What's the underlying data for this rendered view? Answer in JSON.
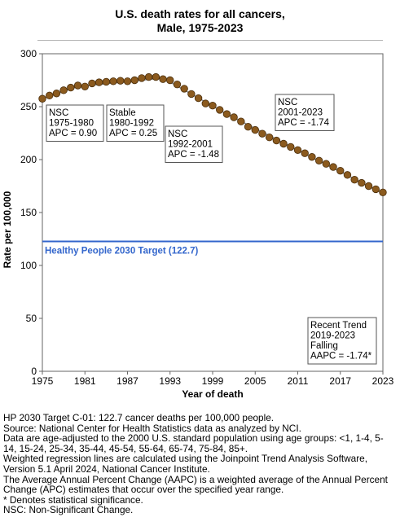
{
  "chart_data": {
    "type": "scatter",
    "title_lines": [
      "U.S. death rates for all cancers,",
      "Male,  1975-2023"
    ],
    "xlabel": "Year of death",
    "ylabel": "Rate per 100,000",
    "xlim": [
      1975,
      2023
    ],
    "ylim": [
      0,
      300
    ],
    "x_ticks": [
      1975,
      1981,
      1987,
      1993,
      1999,
      2005,
      2011,
      2017,
      2023
    ],
    "x_tick_labels": [
      "1975",
      "1981",
      "1987",
      "1993",
      "1999",
      "2005",
      "2011",
      "2017",
      "2023"
    ],
    "y_ticks": [
      0,
      50,
      100,
      150,
      200,
      250,
      300
    ],
    "y_tick_labels": [
      "0",
      "50",
      "100",
      "150",
      "200",
      "250",
      "300"
    ],
    "grid": false,
    "series": [
      {
        "marker": "circle",
        "color": "#8B5A1E",
        "x": [
          1975,
          1976,
          1977,
          1978,
          1979,
          1980,
          1981,
          1982,
          1983,
          1984,
          1985,
          1986,
          1987,
          1988,
          1989,
          1990,
          1991,
          1992,
          1993,
          1994,
          1995,
          1996,
          1997,
          1998,
          1999,
          2000,
          2001,
          2002,
          2003,
          2004,
          2005,
          2006,
          2007,
          2008,
          2009,
          2010,
          2011,
          2012,
          2013,
          2014,
          2015,
          2016,
          2017,
          2018,
          2019,
          2020,
          2021,
          2022,
          2023
        ],
        "y": [
          257.5,
          260.5,
          262.5,
          265.5,
          268,
          270,
          269,
          272,
          273,
          273.5,
          274,
          274.5,
          274,
          275,
          277,
          278,
          278,
          276,
          275,
          271,
          267,
          262,
          258,
          253,
          251,
          247,
          243,
          240,
          236,
          231,
          228,
          224.5,
          221,
          218,
          215,
          212,
          209,
          206,
          202.5,
          199,
          196,
          193,
          189.5,
          185.5,
          181,
          178,
          175,
          172,
          169
        ]
      }
    ],
    "trend_line": {
      "color": "#8a8a8a",
      "x": [
        1975,
        1980,
        1992,
        2001,
        2023
      ],
      "y": [
        257.5,
        269,
        277,
        243,
        168
      ]
    },
    "target": {
      "label": "Healthy People 2030 Target (122.7)",
      "value": 122.7,
      "color": "#3366cc"
    },
    "annotations": [
      {
        "lines": [
          "NSC",
          "1975-1980",
          "APC =  0.90"
        ]
      },
      {
        "lines": [
          "Stable",
          "1980-1992",
          "APC =  0.25"
        ]
      },
      {
        "lines": [
          "NSC",
          "1992-2001",
          "APC = -1.48"
        ]
      },
      {
        "lines": [
          "NSC",
          "2001-2023",
          "APC = -1.74"
        ]
      },
      {
        "lines": [
          "Recent Trend",
          "2019-2023",
          "Falling",
          "AAPC = -1.74*"
        ]
      }
    ]
  },
  "footnotes": [
    "HP 2030 Target C-01: 122.7 cancer deaths per 100,000 people.",
    "Source: National Center for Health Statistics data as analyzed by NCI.",
    "Data are age-adjusted to the 2000 U.S. standard population using age groups: <1, 1-4, 5-",
    "14, 15-24, 25-34, 35-44, 45-54, 55-64, 65-74, 75-84, 85+.",
    "Weighted regression lines are calculated using the Joinpoint Trend Analysis Software,",
    "Version 5.1 April 2024, National Cancer Institute.",
    "The Average Annual Percent Change (AAPC) is a weighted average of the Annual Percent",
    "Change (APC) estimates that occur over the specified year range.",
    "* Denotes statistical significance.",
    "NSC: Non-Significant Change."
  ]
}
